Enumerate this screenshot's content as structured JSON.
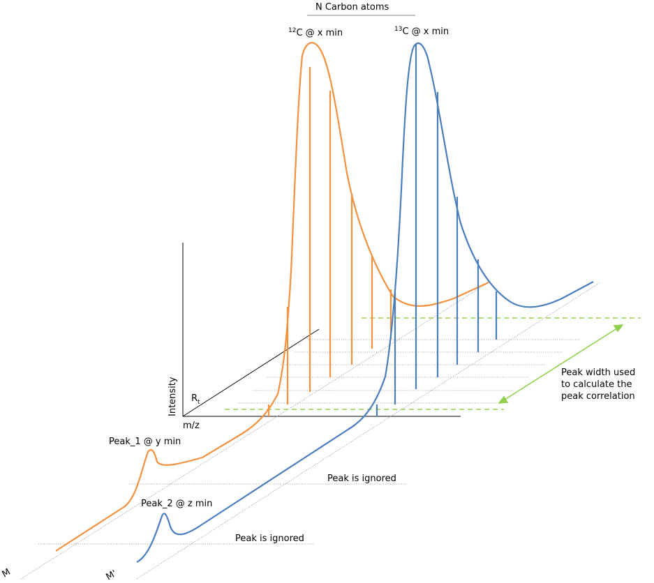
{
  "colors": {
    "orange": "#F5913E",
    "blue": "#4A7DBE",
    "green": "#92D050",
    "axis": "#000000",
    "guide": "#7f7f7f"
  },
  "header": {
    "title": "N Carbon atoms"
  },
  "peaks": {
    "c12_sup": "12",
    "c12_rest": "C @ x min",
    "c13_sup": "13",
    "c13_rest": "C @ x min",
    "peak1": "Peak_1  @ y min",
    "peak2": "Peak_2  @ z min"
  },
  "axes": {
    "intensity": "Intensity",
    "mz": "m/z",
    "rt_main": "R",
    "rt_sub": "t",
    "trace_m": "M",
    "trace_m_prime": "M'"
  },
  "notes": {
    "ignored_1": "Peak is ignored",
    "ignored_2": "Peak is ignored",
    "peak_width_line1": "Peak  width  used",
    "peak_width_line2": "to  calculate  the",
    "peak_width_line3": "peak correlation"
  }
}
